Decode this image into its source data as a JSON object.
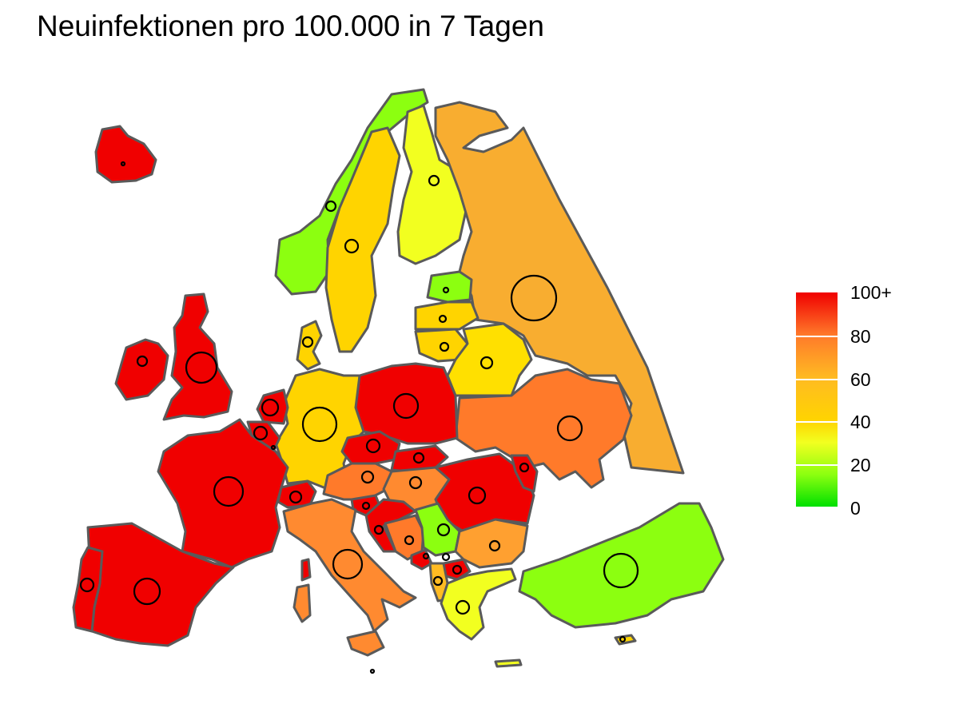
{
  "title": "Neuinfektionen pro 100.000 in 7 Tagen",
  "legend": {
    "ticks": [
      "100+",
      "80",
      "60",
      "40",
      "20",
      "0"
    ],
    "colors": {
      "high": "#f00000",
      "mid_high": "#ff7a2a",
      "mid": "#ffbb22",
      "mid_low": "#ffd400",
      "low": "#f2ff20",
      "very_low": "#8cff10",
      "zero": "#00e000"
    }
  },
  "map_regions": {
    "iceland": "#f00000",
    "ireland": "#f00000",
    "uk": "#f00000",
    "norway": "#8cff10",
    "sweden": "#ffd400",
    "finland": "#f2ff20",
    "russia": "#f8ad30",
    "estonia": "#8cff10",
    "latvia": "#ffd400",
    "lithuania": "#ffd400",
    "belarus": "#ffe000",
    "ukraine": "#ff7a2a",
    "poland": "#f00000",
    "germany": "#ffd400",
    "denmark": "#ffd400",
    "netherlands": "#f00000",
    "belgium": "#f00000",
    "france": "#f00000",
    "spain": "#f00000",
    "portugal": "#f00000",
    "switzerland": "#f00000",
    "italy": "#ff8a30",
    "austria": "#ff7a2a",
    "czechia": "#f00000",
    "slovakia": "#f00000",
    "hungary": "#ff8a30",
    "romania": "#f00000",
    "moldova": "#f00000",
    "slovenia": "#f00000",
    "croatia": "#f00000",
    "bosnia": "#ff7a2a",
    "serbia": "#8cff10",
    "montenegro": "#f00000",
    "north_macedonia": "#f00000",
    "albania": "#ffbb22",
    "bulgaria": "#ffa030",
    "greece": "#f2ff20",
    "turkey": "#8cff10",
    "cyprus": "#ffd400"
  }
}
